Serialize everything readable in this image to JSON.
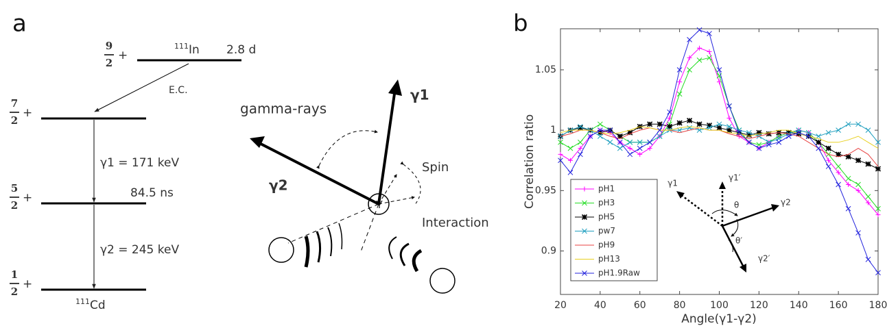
{
  "panel_labels": [
    "a",
    "b"
  ],
  "diagram": {
    "levels": [
      {
        "numerator": "9",
        "denominator": "2",
        "parity": "+"
      },
      {
        "numerator": "7",
        "denominator": "2",
        "parity": "+"
      },
      {
        "numerator": "5",
        "denominator": "2",
        "parity": "+"
      },
      {
        "numerator": "1",
        "denominator": "2",
        "parity": "+"
      }
    ],
    "parent": {
      "mass": "111",
      "symbol": "In"
    },
    "half_life": "2.8 d",
    "decay": "E.C.",
    "gamma1": "γ1 = 171 keV",
    "lifetime": "84.5 ns",
    "gamma2": "γ2 = 245 keV",
    "daughter": {
      "mass": "111",
      "symbol": "Cd"
    },
    "gamma_rays": "gamma-rays",
    "ray1": "γ1",
    "ray2": "γ2",
    "spin": "Spin",
    "interaction": "Interaction"
  },
  "chart_data": {
    "type": "line",
    "x_label": "Angle(γ1-γ2)",
    "y_label": "Correlation ratio",
    "x": [
      20,
      25,
      30,
      35,
      40,
      45,
      50,
      55,
      60,
      65,
      70,
      75,
      80,
      85,
      90,
      95,
      100,
      105,
      110,
      115,
      120,
      125,
      130,
      135,
      140,
      145,
      150,
      155,
      160,
      165,
      170,
      175,
      180
    ],
    "series": [
      {
        "name": "pH1",
        "color": "#ff00ff",
        "marker": "plus",
        "values": [
          0.98,
          0.975,
          0.985,
          0.995,
          1.0,
          0.998,
          0.99,
          0.985,
          0.98,
          0.985,
          0.995,
          1.01,
          1.04,
          1.06,
          1.068,
          1.065,
          1.04,
          1.01,
          0.995,
          0.99,
          0.985,
          0.99,
          0.995,
          0.998,
          1.0,
          0.998,
          0.99,
          0.975,
          0.965,
          0.955,
          0.95,
          0.94,
          0.93
        ]
      },
      {
        "name": "pH3",
        "color": "#22dd22",
        "marker": "x",
        "values": [
          0.99,
          0.985,
          0.99,
          1.0,
          1.005,
          1.0,
          0.995,
          0.99,
          0.99,
          0.99,
          0.995,
          1.005,
          1.03,
          1.05,
          1.058,
          1.06,
          1.045,
          1.02,
          1.0,
          0.99,
          0.988,
          0.99,
          0.995,
          0.998,
          1.0,
          0.998,
          0.99,
          0.98,
          0.97,
          0.96,
          0.955,
          0.945,
          0.935
        ]
      },
      {
        "name": "pH5",
        "color": "#000000",
        "marker": "star",
        "values": [
          0.995,
          1.0,
          1.002,
          1.0,
          0.998,
          1.0,
          0.995,
          0.998,
          1.003,
          1.005,
          1.005,
          1.003,
          1.006,
          1.008,
          1.005,
          1.004,
          1.002,
          1.0,
          0.998,
          0.996,
          0.998,
          0.997,
          0.998,
          0.998,
          0.997,
          0.995,
          0.99,
          0.985,
          0.98,
          0.978,
          0.975,
          0.972,
          0.968
        ]
      },
      {
        "name": "pw7",
        "color": "#1f9fbf",
        "marker": "x",
        "values": [
          0.995,
          1.0,
          1.003,
          1.0,
          0.995,
          0.99,
          0.985,
          0.99,
          0.99,
          0.99,
          0.995,
          1.0,
          1.0,
          1.002,
          1.0,
          1.002,
          1.005,
          1.003,
          1.0,
          0.998,
          0.995,
          0.99,
          0.993,
          0.997,
          1.0,
          0.998,
          0.995,
          0.998,
          1.0,
          1.005,
          1.005,
          1.0,
          0.99
        ]
      },
      {
        "name": "pH9",
        "color": "#e84040",
        "marker": "none",
        "values": [
          0.995,
          0.997,
          1.0,
          1.0,
          0.998,
          0.995,
          0.993,
          0.997,
          1.0,
          1.002,
          1.0,
          1.0,
          0.998,
          1.0,
          1.002,
          1.0,
          1.0,
          0.997,
          0.995,
          0.993,
          0.995,
          0.997,
          0.998,
          0.997,
          0.995,
          0.99,
          0.985,
          0.98,
          0.978,
          0.98,
          0.985,
          0.98,
          0.97
        ]
      },
      {
        "name": "pH13",
        "color": "#e8d020",
        "marker": "none",
        "values": [
          0.998,
          1.0,
          1.0,
          1.0,
          0.998,
          0.997,
          0.998,
          1.0,
          1.003,
          1.002,
          1.0,
          1.0,
          1.002,
          1.003,
          1.002,
          1.0,
          1.0,
          0.998,
          0.997,
          0.995,
          0.997,
          0.998,
          1.0,
          1.0,
          0.997,
          0.995,
          0.993,
          0.99,
          0.99,
          0.992,
          0.995,
          0.99,
          0.985
        ]
      },
      {
        "name": "pH1.9Raw",
        "color": "#2222dd",
        "marker": "x",
        "values": [
          0.975,
          0.965,
          0.98,
          0.995,
          1.0,
          1.0,
          0.99,
          0.98,
          0.985,
          0.99,
          1.0,
          1.015,
          1.05,
          1.075,
          1.083,
          1.08,
          1.05,
          1.02,
          0.998,
          0.99,
          0.985,
          0.988,
          0.99,
          0.995,
          0.998,
          0.995,
          0.985,
          0.97,
          0.955,
          0.935,
          0.915,
          0.893,
          0.882
        ]
      }
    ],
    "xlim": [
      20,
      180
    ],
    "xticks": [
      20,
      40,
      60,
      80,
      100,
      120,
      140,
      160,
      180
    ],
    "ylim": [
      0.864,
      1.084
    ],
    "yticks": [
      0.9,
      0.95,
      1,
      1.05
    ],
    "grid": false,
    "legend": "lower left",
    "annotations": [
      "γ1",
      "γ1′",
      "γ2",
      "θ",
      "θ′",
      "γ2′"
    ]
  }
}
